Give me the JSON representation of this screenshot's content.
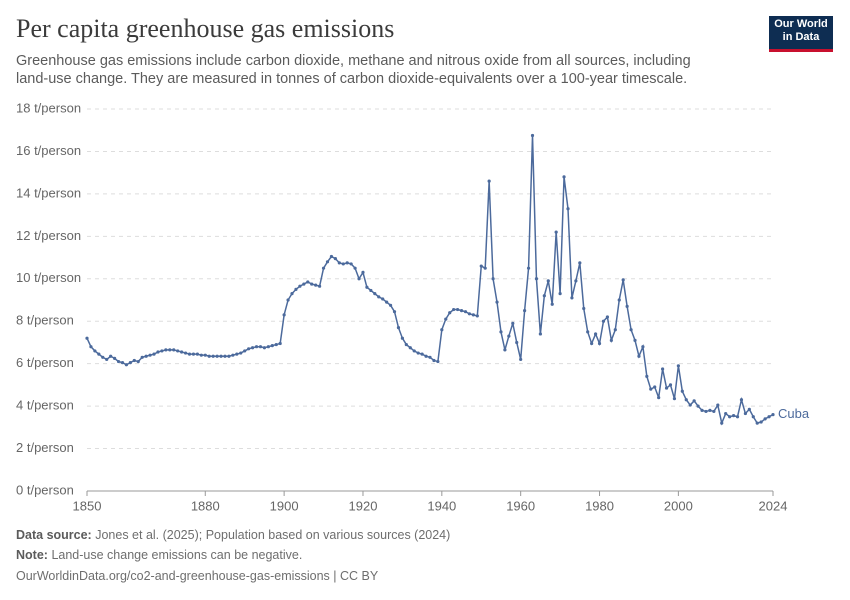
{
  "chart_data": {
    "type": "line",
    "title": "Per capita greenhouse gas emissions",
    "subtitle": "Greenhouse gas emissions include carbon dioxide, methane and nitrous oxide from all sources, including land-use change. They are measured in tonnes of carbon dioxide-equivalents over a 100-year timescale.",
    "logo": [
      "Our World",
      "in Data"
    ],
    "source_label": "Data source:",
    "source": "Jones et al. (2025); Population based on various sources (2024)",
    "note_label": "Note:",
    "note": "Land-use change emissions can be negative.",
    "url": "OurWorldinData.org/co2-and-greenhouse-gas-emissions | CC BY",
    "x": [
      1850,
      1851,
      1852,
      1853,
      1854,
      1855,
      1856,
      1857,
      1858,
      1859,
      1860,
      1861,
      1862,
      1863,
      1864,
      1865,
      1866,
      1867,
      1868,
      1869,
      1870,
      1871,
      1872,
      1873,
      1874,
      1875,
      1876,
      1877,
      1878,
      1879,
      1880,
      1881,
      1882,
      1883,
      1884,
      1885,
      1886,
      1887,
      1888,
      1889,
      1890,
      1891,
      1892,
      1893,
      1894,
      1895,
      1896,
      1897,
      1898,
      1899,
      1900,
      1901,
      1902,
      1903,
      1904,
      1905,
      1906,
      1907,
      1908,
      1909,
      1910,
      1911,
      1912,
      1913,
      1914,
      1915,
      1916,
      1917,
      1918,
      1919,
      1920,
      1921,
      1922,
      1923,
      1924,
      1925,
      1926,
      1927,
      1928,
      1929,
      1930,
      1931,
      1932,
      1933,
      1934,
      1935,
      1936,
      1937,
      1938,
      1939,
      1940,
      1941,
      1942,
      1943,
      1944,
      1945,
      1946,
      1947,
      1948,
      1949,
      1950,
      1951,
      1952,
      1953,
      1954,
      1955,
      1956,
      1957,
      1958,
      1959,
      1960,
      1961,
      1962,
      1963,
      1964,
      1965,
      1966,
      1967,
      1968,
      1969,
      1970,
      1971,
      1972,
      1973,
      1974,
      1975,
      1976,
      1977,
      1978,
      1979,
      1980,
      1981,
      1982,
      1983,
      1984,
      1985,
      1986,
      1987,
      1988,
      1989,
      1990,
      1991,
      1992,
      1993,
      1994,
      1995,
      1996,
      1997,
      1998,
      1999,
      2000,
      2001,
      2002,
      2003,
      2004,
      2005,
      2006,
      2007,
      2008,
      2009,
      2010,
      2011,
      2012,
      2013,
      2014,
      2015,
      2016,
      2017,
      2018,
      2019,
      2020,
      2021,
      2022,
      2023,
      2024
    ],
    "series": [
      {
        "name": "Cuba",
        "color": "#4c6a9c",
        "values": [
          7.2,
          6.8,
          6.6,
          6.45,
          6.3,
          6.2,
          6.35,
          6.25,
          6.1,
          6.05,
          5.95,
          6.05,
          6.15,
          6.1,
          6.3,
          6.35,
          6.4,
          6.45,
          6.55,
          6.6,
          6.65,
          6.65,
          6.65,
          6.6,
          6.55,
          6.5,
          6.45,
          6.45,
          6.45,
          6.4,
          6.4,
          6.35,
          6.35,
          6.35,
          6.35,
          6.35,
          6.35,
          6.4,
          6.45,
          6.5,
          6.6,
          6.7,
          6.75,
          6.8,
          6.8,
          6.75,
          6.8,
          6.85,
          6.9,
          6.95,
          8.3,
          9.0,
          9.3,
          9.5,
          9.65,
          9.75,
          9.85,
          9.75,
          9.7,
          9.65,
          10.5,
          10.8,
          11.05,
          10.95,
          10.75,
          10.7,
          10.75,
          10.7,
          10.5,
          10.0,
          10.3,
          9.6,
          9.45,
          9.3,
          9.15,
          9.05,
          8.9,
          8.75,
          8.45,
          7.7,
          7.2,
          6.9,
          6.75,
          6.6,
          6.5,
          6.45,
          6.35,
          6.3,
          6.15,
          6.1,
          7.6,
          8.1,
          8.4,
          8.55,
          8.55,
          8.5,
          8.45,
          8.35,
          8.3,
          8.25,
          10.6,
          10.5,
          14.6,
          10.0,
          8.9,
          7.5,
          6.65,
          7.3,
          7.9,
          7.0,
          6.2,
          8.5,
          10.5,
          16.75,
          10.0,
          7.4,
          9.2,
          9.9,
          8.8,
          12.2,
          9.3,
          14.8,
          13.3,
          9.1,
          9.9,
          10.75,
          8.6,
          7.5,
          6.95,
          7.4,
          6.95,
          8.0,
          8.2,
          7.1,
          7.6,
          9.0,
          9.95,
          8.7,
          7.6,
          7.1,
          6.35,
          6.8,
          5.4,
          4.8,
          4.9,
          4.4,
          5.75,
          4.85,
          5.0,
          4.35,
          5.9,
          4.7,
          4.3,
          4.05,
          4.25,
          4.0,
          3.8,
          3.75,
          3.8,
          3.75,
          4.05,
          3.2,
          3.65,
          3.5,
          3.55,
          3.5,
          4.3,
          3.65,
          3.85,
          3.5,
          3.2,
          3.25,
          3.4,
          3.5,
          3.6
        ]
      }
    ],
    "xlim": [
      1850,
      2024
    ],
    "xticks": [
      1850,
      1880,
      1900,
      1920,
      1940,
      1960,
      1980,
      2000,
      2024
    ],
    "ylim": [
      0,
      18
    ],
    "yticks": [
      {
        "value": 0,
        "label": "0 t/person"
      },
      {
        "value": 2,
        "label": "2 t/person"
      },
      {
        "value": 4,
        "label": "4 t/person"
      },
      {
        "value": 6,
        "label": "6 t/person"
      },
      {
        "value": 8,
        "label": "8 t/person"
      },
      {
        "value": 10,
        "label": "10 t/person"
      },
      {
        "value": 12,
        "label": "12 t/person"
      },
      {
        "value": 14,
        "label": "14 t/person"
      },
      {
        "value": 16,
        "label": "16 t/person"
      },
      {
        "value": 18,
        "label": "18 t/person"
      }
    ],
    "grid": true
  }
}
